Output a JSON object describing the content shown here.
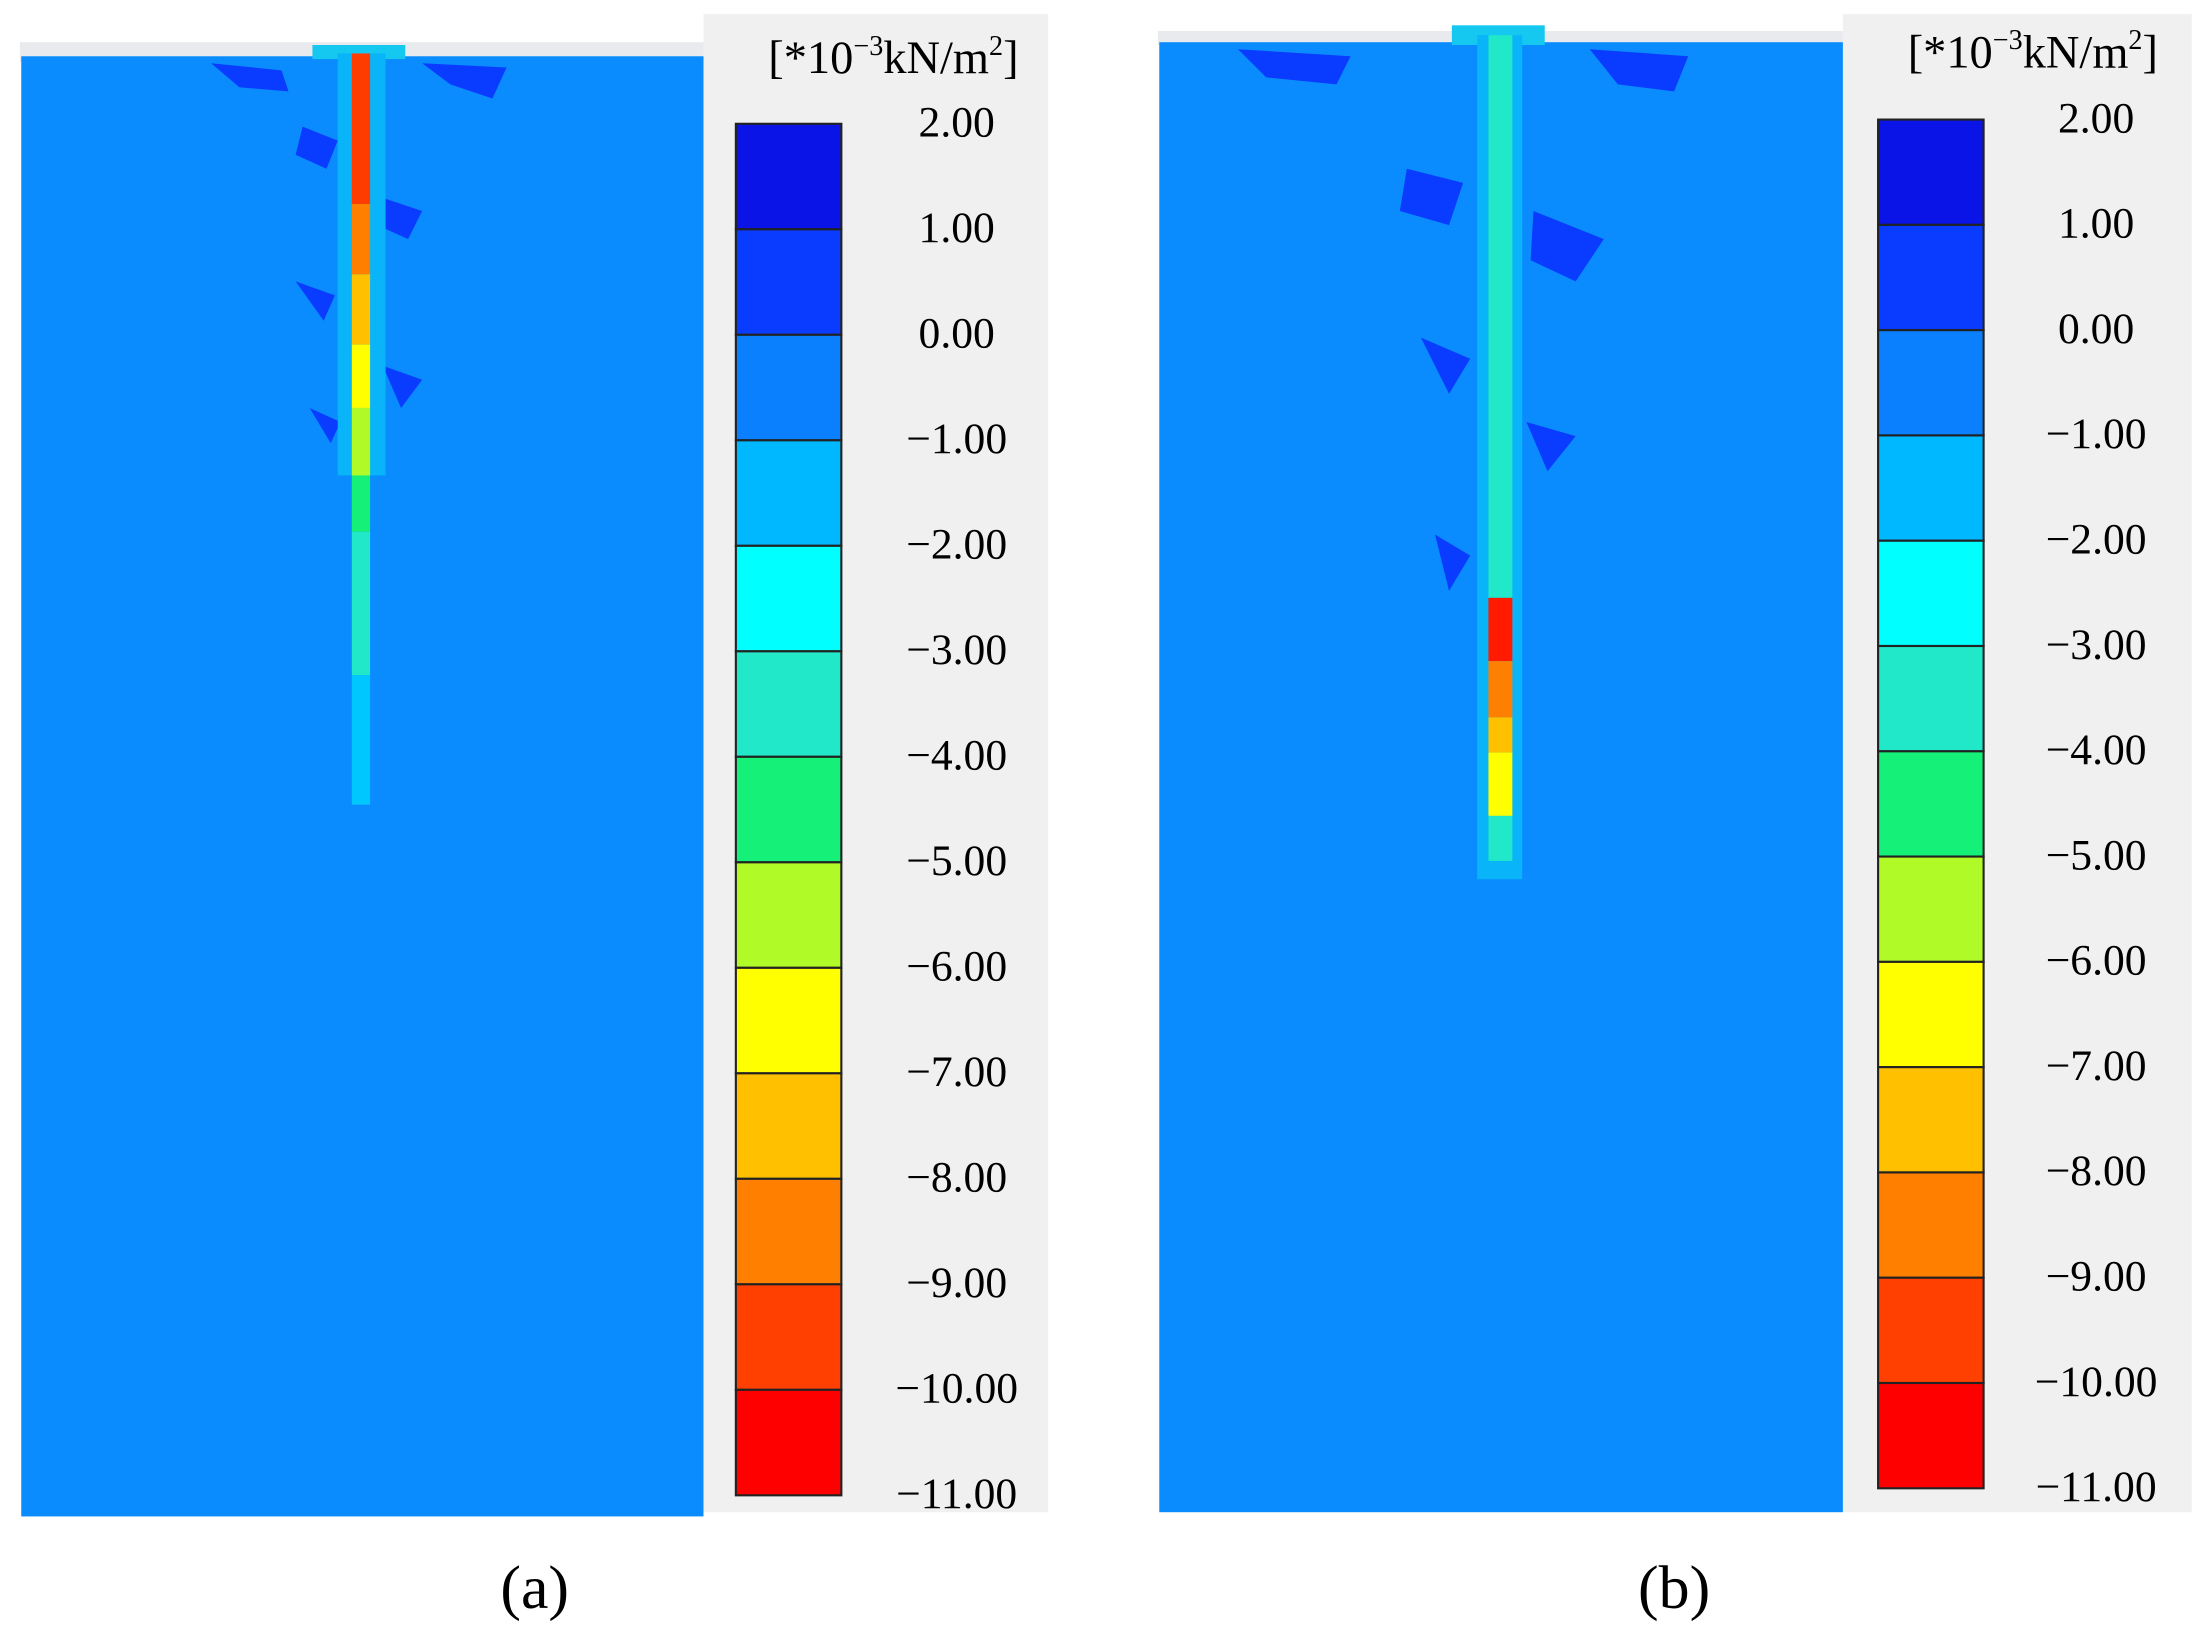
{
  "panels": [
    {
      "label": "(a)",
      "unit": {
        "prefix": "[*10",
        "exp1": "−3",
        "mid": "kN/m",
        "exp2": "2",
        "suffix": "]"
      },
      "legend_labels": [
        "2.00",
        "1.00",
        "0.00",
        "−1.00",
        "−2.00",
        "−3.00",
        "−4.00",
        "−5.00",
        "−6.00",
        "−7.00",
        "−8.00",
        "−9.00",
        "−10.00",
        "−11.00"
      ]
    },
    {
      "label": "(b)",
      "unit": {
        "prefix": "[*10",
        "exp1": "−3",
        "mid": "kN/m",
        "exp2": "2",
        "suffix": "]"
      },
      "legend_labels": [
        "2.00",
        "1.00",
        "0.00",
        "−1.00",
        "−2.00",
        "−3.00",
        "−4.00",
        "−5.00",
        "−6.00",
        "−7.00",
        "−8.00",
        "−9.00",
        "−10.00",
        "−11.00"
      ]
    }
  ],
  "legend_colors": [
    "#0a14e6",
    "#0a3cff",
    "#0a80ff",
    "#00b8ff",
    "#00ffff",
    "#20e8c8",
    "#14f078",
    "#b0fa28",
    "#ffff00",
    "#ffc000",
    "#ff8000",
    "#ff4000",
    "#ff0000"
  ]
}
